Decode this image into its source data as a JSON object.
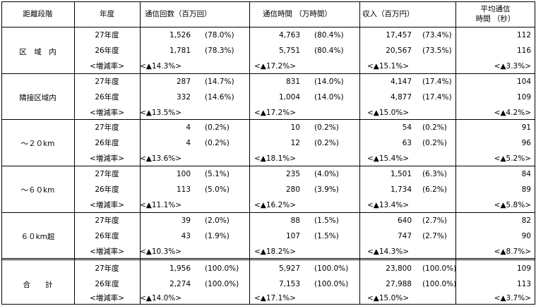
{
  "headers": {
    "distance": "距離段階",
    "year": "年度",
    "calls": "通信回数（百万回）",
    "time": "通信時間 （万時間）",
    "revenue": "収入（百万円）",
    "avg_line1": "平均通信",
    "avg_line2": "時間 （秒）"
  },
  "groups": [
    {
      "label": "区　域　内",
      "rows": [
        {
          "year": "27年度",
          "calls": "1,526",
          "calls_pct": "(78.0%)",
          "time": "4,763",
          "time_pct": "(80.4%)",
          "rev": "17,457",
          "rev_pct": "(73.4%)",
          "avg": "112"
        },
        {
          "year": "26年度",
          "calls": "1,781",
          "calls_pct": "(78.3%)",
          "time": "5,751",
          "time_pct": "(80.4%)",
          "rev": "20,567",
          "rev_pct": "(73.5%)",
          "avg": "116"
        }
      ],
      "rate": {
        "label": "<増減率>",
        "calls": "<▲14.3%>",
        "time": "<▲17.2%>",
        "rev": "<▲15.1%>",
        "avg": "<▲3.3%>"
      }
    },
    {
      "label": "隣接区域内",
      "rows": [
        {
          "year": "27年度",
          "calls": "287",
          "calls_pct": "(14.7%)",
          "time": "831",
          "time_pct": "(14.0%)",
          "rev": "4,147",
          "rev_pct": "(17.4%)",
          "avg": "104"
        },
        {
          "year": "26年度",
          "calls": "332",
          "calls_pct": "(14.6%)",
          "time": "1,004",
          "time_pct": "(14.0%)",
          "rev": "4,877",
          "rev_pct": "(17.4%)",
          "avg": "109"
        }
      ],
      "rate": {
        "label": "<増減率>",
        "calls": "<▲13.5%>",
        "time": "<▲17.2%>",
        "rev": "<▲15.0%>",
        "avg": "<▲4.2%>"
      }
    },
    {
      "label": "～２０km",
      "rows": [
        {
          "year": "27年度",
          "calls": "4",
          "calls_pct": "(0.2%)",
          "time": "10",
          "time_pct": "(0.2%)",
          "rev": "54",
          "rev_pct": "(0.2%)",
          "avg": "91"
        },
        {
          "year": "26年度",
          "calls": "4",
          "calls_pct": "(0.2%)",
          "time": "12",
          "time_pct": "(0.2%)",
          "rev": "63",
          "rev_pct": "(0.2%)",
          "avg": "96"
        }
      ],
      "rate": {
        "label": "<増減率>",
        "calls": "<▲13.6%>",
        "time": "<▲18.1%>",
        "rev": "<▲15.4%>",
        "avg": "<▲5.2%>"
      }
    },
    {
      "label": "～６０km",
      "rows": [
        {
          "year": "27年度",
          "calls": "100",
          "calls_pct": "(5.1%)",
          "time": "235",
          "time_pct": "(4.0%)",
          "rev": "1,501",
          "rev_pct": "(6.3%)",
          "avg": "84"
        },
        {
          "year": "26年度",
          "calls": "113",
          "calls_pct": "(5.0%)",
          "time": "280",
          "time_pct": "(3.9%)",
          "rev": "1,734",
          "rev_pct": "(6.2%)",
          "avg": "89"
        }
      ],
      "rate": {
        "label": "<増減率>",
        "calls": "<▲11.1%>",
        "time": "<▲16.2%>",
        "rev": "<▲13.4%>",
        "avg": "<▲5.8%>"
      }
    },
    {
      "label": "６０km超",
      "rows": [
        {
          "year": "27年度",
          "calls": "39",
          "calls_pct": "(2.0%)",
          "time": "88",
          "time_pct": "(1.5%)",
          "rev": "640",
          "rev_pct": "(2.7%)",
          "avg": "82"
        },
        {
          "year": "26年度",
          "calls": "43",
          "calls_pct": "(1.9%)",
          "time": "107",
          "time_pct": "(1.5%)",
          "rev": "747",
          "rev_pct": "(2.7%)",
          "avg": "90"
        }
      ],
      "rate": {
        "label": "<増減率>",
        "calls": "<▲10.3%>",
        "time": "<▲18.2%>",
        "rev": "<▲14.3%>",
        "avg": "<▲8.7%>"
      }
    },
    {
      "label": "合　　計",
      "rows": [
        {
          "year": "27年度",
          "calls": "1,956",
          "calls_pct": "(100.0%)",
          "time": "5,927",
          "time_pct": "(100.0%)",
          "rev": "23,800",
          "rev_pct": "(100.0%)",
          "avg": "109"
        },
        {
          "year": "26年度",
          "calls": "2,274",
          "calls_pct": "(100.0%)",
          "time": "7,153",
          "time_pct": "(100.0%)",
          "rev": "27,988",
          "rev_pct": "(100.0%)",
          "avg": "113"
        }
      ],
      "rate": {
        "label": "<増減率>",
        "calls": "<▲14.0%>",
        "time": "<▲17.1%>",
        "rev": "<▲15.0%>",
        "avg": "<▲3.7%>"
      }
    }
  ]
}
